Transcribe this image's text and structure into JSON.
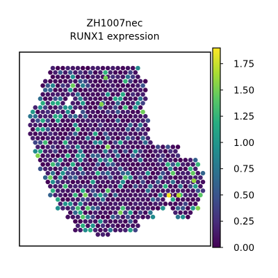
{
  "chart_data": {
    "type": "scatter",
    "subtype": "spatial-hexbin",
    "title": "ZH1007nec",
    "subtitle": "RUNX1 expression",
    "xlabel": "",
    "ylabel": "",
    "grid": false,
    "colormap": "viridis",
    "colorbar": {
      "range": [
        0.0,
        1.9
      ],
      "ticks": [
        0.0,
        0.25,
        0.5,
        0.75,
        1.0,
        1.25,
        1.5,
        1.75
      ],
      "tick_labels": [
        "0.00",
        "0.25",
        "0.50",
        "0.75",
        "1.00",
        "1.25",
        "1.50",
        "1.75"
      ],
      "placement": "right"
    },
    "notes_visible": "Tissue spots colored by RUNX1 expression; most spots near 0, scattered higher values, maximum near 1.9"
  }
}
